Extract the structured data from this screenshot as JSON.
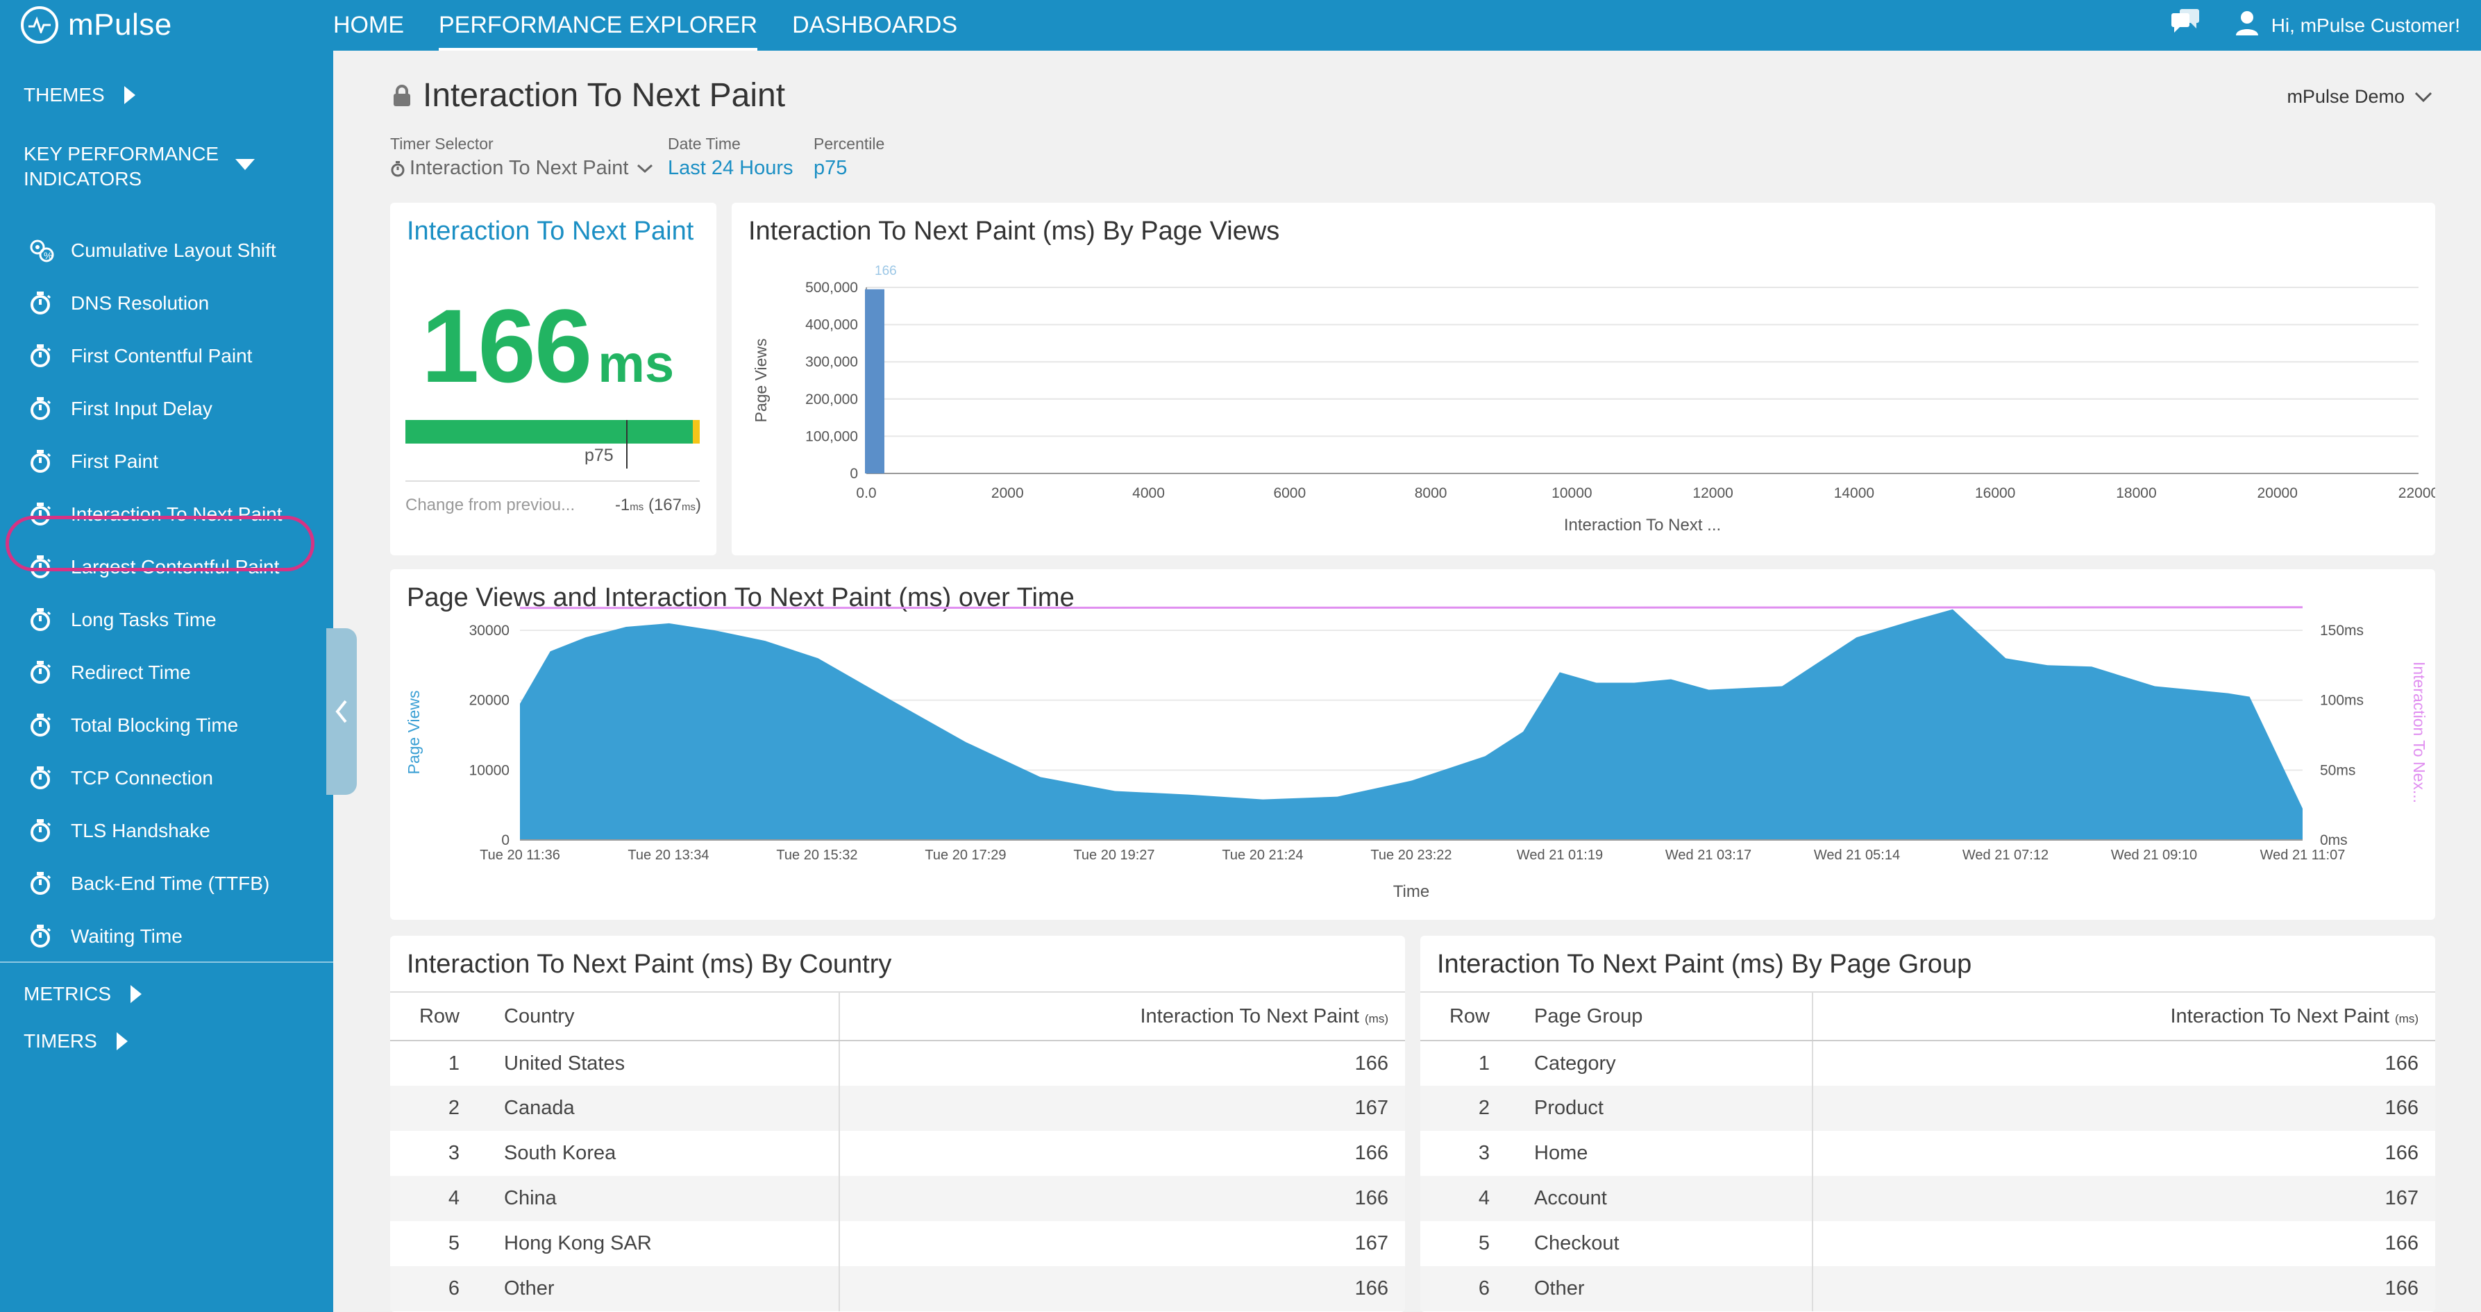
{
  "app": {
    "logo_text": "mPulse",
    "nav": [
      "HOME",
      "PERFORMANCE EXPLORER",
      "DASHBOARDS"
    ],
    "active_nav": 1,
    "greeting": "Hi, mPulse Customer!"
  },
  "sidebar": {
    "themes_label": "THEMES",
    "kpi_label": "KEY PERFORMANCE INDICATORS",
    "items": [
      {
        "label": "Cumulative Layout Shift",
        "icon": "layout-shift-icon"
      },
      {
        "label": "DNS Resolution",
        "icon": "stopwatch-icon"
      },
      {
        "label": "First Contentful Paint",
        "icon": "stopwatch-icon"
      },
      {
        "label": "First Input Delay",
        "icon": "stopwatch-icon"
      },
      {
        "label": "First Paint",
        "icon": "stopwatch-icon"
      },
      {
        "label": "Interaction To Next Paint",
        "icon": "stopwatch-icon"
      },
      {
        "label": "Largest Contentful Paint",
        "icon": "stopwatch-icon"
      },
      {
        "label": "Long Tasks Time",
        "icon": "stopwatch-icon"
      },
      {
        "label": "Redirect Time",
        "icon": "stopwatch-icon"
      },
      {
        "label": "Total Blocking Time",
        "icon": "stopwatch-icon"
      },
      {
        "label": "TCP Connection",
        "icon": "stopwatch-icon"
      },
      {
        "label": "TLS Handshake",
        "icon": "stopwatch-icon"
      },
      {
        "label": "Back-End Time (TTFB)",
        "icon": "stopwatch-icon"
      },
      {
        "label": "Waiting Time",
        "icon": "stopwatch-icon"
      }
    ],
    "selected_index": 5,
    "metrics_label": "METRICS",
    "timers_label": "TIMERS"
  },
  "page": {
    "title": "Interaction To Next Paint",
    "tenant": "mPulse Demo",
    "filters": {
      "timer_label": "Timer Selector",
      "timer_value": "Interaction To Next Paint",
      "date_label": "Date Time",
      "date_value": "Last 24 Hours",
      "percentile_label": "Percentile",
      "percentile_value": "p75"
    }
  },
  "kpi_card": {
    "title": "Interaction To Next Paint",
    "value": "166",
    "unit": "ms",
    "marker_label": "p75",
    "change_label": "Change from previou...",
    "change_value": "-1",
    "change_unit": "ms",
    "previous_value": "167",
    "previous_unit": "ms",
    "colors": {
      "good": "#22b462",
      "warn": "#f5c518"
    }
  },
  "histogram": {
    "title": "Interaction To Next Paint (ms) By Page Views"
  },
  "timeseries": {
    "title": "Page Views and Interaction To Next Paint (ms) over Time"
  },
  "country_table": {
    "title": "Interaction To Next Paint (ms) By Country",
    "headers": [
      "Row",
      "Country",
      "Interaction To Next Paint",
      "ms"
    ],
    "rows": [
      [
        "1",
        "United States",
        "166"
      ],
      [
        "2",
        "Canada",
        "167"
      ],
      [
        "3",
        "South Korea",
        "166"
      ],
      [
        "4",
        "China",
        "166"
      ],
      [
        "5",
        "Hong Kong SAR",
        "167"
      ],
      [
        "6",
        "Other",
        "166"
      ]
    ]
  },
  "pagegroup_table": {
    "title": "Interaction To Next Paint (ms) By Page Group",
    "headers": [
      "Row",
      "Page Group",
      "Interaction To Next Paint",
      "ms"
    ],
    "rows": [
      [
        "1",
        "Category",
        "166"
      ],
      [
        "2",
        "Product",
        "166"
      ],
      [
        "3",
        "Home",
        "166"
      ],
      [
        "4",
        "Account",
        "167"
      ],
      [
        "5",
        "Checkout",
        "166"
      ],
      [
        "6",
        "Other",
        "166"
      ]
    ]
  },
  "chart_data": [
    {
      "type": "bar",
      "title": "Interaction To Next Paint (ms) By Page Views",
      "xlabel": "Interaction To Next ...",
      "ylabel": "Page Views",
      "x_ticks": [
        "0.0",
        "2000",
        "4000",
        "6000",
        "8000",
        "10000",
        "12000",
        "14000",
        "16000",
        "18000",
        "20000",
        "22000"
      ],
      "y_ticks": [
        "0",
        "100,000",
        "200,000",
        "300,000",
        "400,000",
        "500,000"
      ],
      "xlim": [
        0,
        22000
      ],
      "ylim": [
        0,
        500000
      ],
      "bars": [
        {
          "x": 0,
          "y": 495000
        }
      ],
      "marker_value": 166,
      "marker_label": "166",
      "color": "#5b8fc9",
      "grid": true
    },
    {
      "type": "area",
      "title": "Page Views and Interaction To Next Paint (ms) over Time",
      "xlabel": "Time",
      "ylabel": "Page Views",
      "ylabel_right": "Interaction To Nex...",
      "x_ticks": [
        "Tue 20 11:36",
        "Tue 20 13:34",
        "Tue 20 15:32",
        "Tue 20 17:29",
        "Tue 20 19:27",
        "Tue 20 21:24",
        "Tue 20 23:22",
        "Wed 21 01:19",
        "Wed 21 03:17",
        "Wed 21 05:14",
        "Wed 21 07:12",
        "Wed 21 09:10",
        "Wed 21 11:07"
      ],
      "y_ticks": [
        "0",
        "10000",
        "20000",
        "30000"
      ],
      "y_ticks_right": [
        "0ms",
        "50ms",
        "100ms",
        "150ms"
      ],
      "ylim": [
        0,
        30000
      ],
      "ylim_right": [
        0,
        150
      ],
      "series": [
        {
          "name": "Page Views",
          "kind": "area",
          "color": "#3a9fd4",
          "x": [
            "Tue 20 11:36",
            "Tue 20 12:00",
            "Tue 20 12:28",
            "Tue 20 13:00",
            "Tue 20 13:34",
            "Tue 20 14:10",
            "Tue 20 14:50",
            "Tue 20 15:32",
            "Tue 20 16:30",
            "Tue 20 17:29",
            "Tue 20 18:28",
            "Tue 20 19:27",
            "Tue 20 20:25",
            "Tue 20 21:24",
            "Tue 20 22:23",
            "Tue 20 23:22",
            "Wed 21 00:20",
            "Wed 21 00:50",
            "Wed 21 01:19",
            "Wed 21 01:48",
            "Wed 21 02:18",
            "Wed 21 02:47",
            "Wed 21 03:17",
            "Wed 21 04:15",
            "Wed 21 05:14",
            "Wed 21 06:00",
            "Wed 21 06:30",
            "Wed 21 07:12",
            "Wed 21 07:45",
            "Wed 21 08:20",
            "Wed 21 09:10",
            "Wed 21 10:08",
            "Wed 21 10:25",
            "Wed 21 11:07"
          ],
          "values": [
            19500,
            27000,
            29000,
            30500,
            31000,
            30000,
            28500,
            26000,
            20000,
            14000,
            9000,
            7000,
            6500,
            5800,
            6200,
            8500,
            12000,
            15500,
            24000,
            22500,
            22500,
            23000,
            21500,
            22000,
            29000,
            31500,
            33000,
            26000,
            25000,
            24800,
            22000,
            21000,
            20500,
            4500
          ]
        },
        {
          "name": "Interaction To Next Paint",
          "kind": "line",
          "axis": "right",
          "color": "#e08ef0",
          "values_constant": 166
        }
      ],
      "grid": true
    }
  ]
}
